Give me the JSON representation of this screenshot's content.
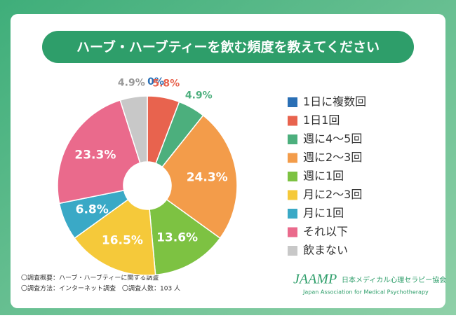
{
  "chart_data": {
    "type": "donut",
    "title": "ハーブ・ハーブティーを飲む頻度を教えてください",
    "categories": [
      "1日に複数回",
      "1日1回",
      "週に4〜5回",
      "週に2〜3回",
      "週に1回",
      "月に2〜3回",
      "月に1回",
      "それ以下",
      "飲まない"
    ],
    "values": [
      0,
      5.8,
      4.9,
      24.3,
      13.6,
      16.5,
      6.8,
      23.3,
      4.9
    ],
    "value_labels": [
      "0%",
      "5.8%",
      "4.9%",
      "24.3%",
      "13.6%",
      "16.5%",
      "6.8%",
      "23.3%",
      "4.9%"
    ],
    "colors": [
      "#2a6fb5",
      "#e8634e",
      "#4caf7d",
      "#f39c4a",
      "#7dc242",
      "#f5c93a",
      "#3aa9c6",
      "#ea6a8c",
      "#c8c8c8"
    ],
    "notes": [
      "〇調査概要：ハーブ・ハーブティーに関する調査",
      "〇調査方法：インターネット調査　〇調査人数：103 人"
    ],
    "logo": {
      "mark": "JAAMP",
      "name": "日本メディカル心理セラピー協会",
      "english": "Japan Association for Medical Psychotherapy"
    }
  }
}
